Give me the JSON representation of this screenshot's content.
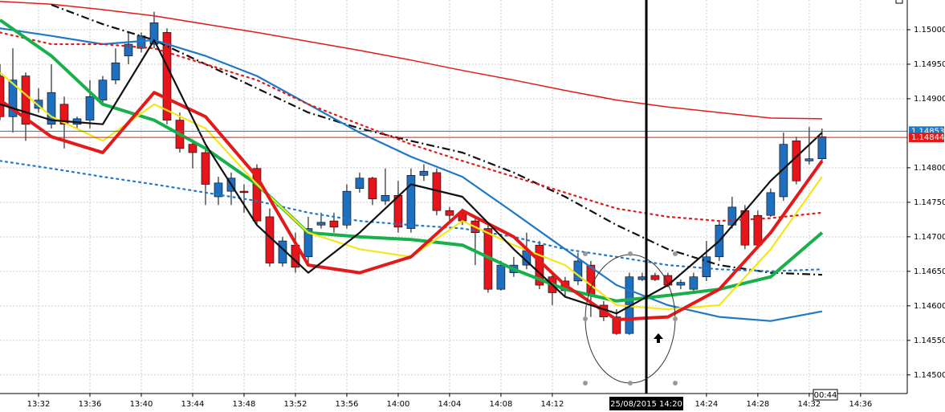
{
  "chart_data": {
    "type": "candlestick",
    "x": [
      "13:29",
      "13:30",
      "13:31",
      "13:32",
      "13:33",
      "13:34",
      "13:35",
      "13:36",
      "13:37",
      "13:38",
      "13:39",
      "13:40",
      "13:41",
      "13:42",
      "13:43",
      "13:44",
      "13:45",
      "13:46",
      "13:47",
      "13:48",
      "13:49",
      "13:50",
      "13:51",
      "13:52",
      "13:53",
      "13:54",
      "13:55",
      "13:56",
      "13:57",
      "13:58",
      "13:59",
      "14:00",
      "14:01",
      "14:02",
      "14:03",
      "14:04",
      "14:05",
      "14:06",
      "14:07",
      "14:08",
      "14:09",
      "14:10",
      "14:11",
      "14:12",
      "14:13",
      "14:14",
      "14:15",
      "14:16",
      "14:17",
      "14:18",
      "14:19",
      "14:20",
      "14:21",
      "14:22",
      "14:23",
      "14:24",
      "14:25",
      "14:26",
      "14:27",
      "14:28",
      "14:29",
      "14:30",
      "14:31",
      "14:32",
      "14:33"
    ],
    "candles": {
      "open": [
        1.14933,
        1.14874,
        1.14933,
        1.14886,
        1.14863,
        1.14892,
        1.14863,
        1.14869,
        1.14898,
        1.14927,
        1.14962,
        1.14973,
        1.14979,
        1.14996,
        1.14869,
        1.14834,
        1.14822,
        1.14758,
        1.14766,
        1.14766,
        1.14799,
        1.14729,
        1.14662,
        1.14688,
        1.14671,
        1.14717,
        1.14723,
        1.14717,
        1.1477,
        1.14785,
        1.14752,
        1.1476,
        1.14712,
        1.14789,
        1.14793,
        1.14738,
        1.14735,
        1.14723,
        1.14712,
        1.14624,
        1.14648,
        1.14659,
        1.14688,
        1.14642,
        1.14636,
        1.14636,
        1.14659,
        1.14601,
        1.14584,
        1.1456,
        1.14638,
        1.14644,
        1.14644,
        1.1463,
        1.14624,
        1.14642,
        1.14671,
        1.14717,
        1.14738,
        1.14731,
        1.14731,
        1.14758,
        1.14839,
        1.1481,
        1.14813
      ],
      "high": [
        1.1495,
        1.14973,
        1.14938,
        1.14915,
        1.1495,
        1.14903,
        1.14874,
        1.14927,
        1.14933,
        1.14973,
        1.14996,
        1.14996,
        1.15026,
        1.15002,
        1.1488,
        1.14839,
        1.14828,
        1.14787,
        1.14793,
        1.14776,
        1.14805,
        1.14741,
        1.147,
        1.14706,
        1.14729,
        1.14735,
        1.14735,
        1.14776,
        1.14793,
        1.14787,
        1.14799,
        1.14781,
        1.14799,
        1.14805,
        1.14799,
        1.14743,
        1.14741,
        1.14729,
        1.14717,
        1.14665,
        1.14671,
        1.14706,
        1.14694,
        1.14648,
        1.14642,
        1.14677,
        1.14665,
        1.14607,
        1.14595,
        1.14648,
        1.14648,
        1.14648,
        1.14648,
        1.14638,
        1.14648,
        1.14694,
        1.14723,
        1.14758,
        1.14746,
        1.14738,
        1.1477,
        1.14851,
        1.14845,
        1.14859,
        1.14857
      ],
      "low": [
        1.14869,
        1.14851,
        1.14839,
        1.1488,
        1.14857,
        1.14828,
        1.14857,
        1.14857,
        1.14892,
        1.14921,
        1.1495,
        1.14967,
        1.14973,
        1.14863,
        1.14822,
        1.14799,
        1.14746,
        1.14746,
        1.14746,
        1.14735,
        1.14717,
        1.14657,
        1.14657,
        1.14648,
        1.14659,
        1.14712,
        1.14706,
        1.14712,
        1.14764,
        1.14746,
        1.14746,
        1.14706,
        1.14706,
        1.14781,
        1.14731,
        1.14723,
        1.14717,
        1.14659,
        1.14619,
        1.14622,
        1.14642,
        1.14653,
        1.14624,
        1.14601,
        1.14613,
        1.1463,
        1.14584,
        1.14578,
        1.14558,
        1.14558,
        1.14636,
        1.14636,
        1.14627,
        1.14624,
        1.14619,
        1.14636,
        1.14665,
        1.14712,
        1.14682,
        1.14682,
        1.14729,
        1.14752,
        1.14776,
        1.14805,
        1.1481
      ],
      "close": [
        1.14874,
        1.14927,
        1.14863,
        1.14898,
        1.14909,
        1.14863,
        1.14871,
        1.14903,
        1.14927,
        1.14952,
        1.14979,
        1.14991,
        1.1501,
        1.14869,
        1.14828,
        1.14822,
        1.14776,
        1.14778,
        1.14785,
        1.14764,
        1.14723,
        1.14662,
        1.14694,
        1.14656,
        1.14712,
        1.14721,
        1.14714,
        1.14766,
        1.14785,
        1.14755,
        1.1476,
        1.14714,
        1.14789,
        1.14795,
        1.14738,
        1.14731,
        1.14723,
        1.14706,
        1.14624,
        1.14659,
        1.14659,
        1.1468,
        1.1463,
        1.14619,
        1.14622,
        1.14665,
        1.14615,
        1.14584,
        1.1456,
        1.14642,
        1.14642,
        1.14638,
        1.1463,
        1.14634,
        1.14642,
        1.14671,
        1.14717,
        1.14743,
        1.14688,
        1.14688,
        1.14764,
        1.14834,
        1.14781,
        1.14813,
        1.14845
      ]
    },
    "up_color": "#1f6fc0",
    "down_color": "#e8141c",
    "series": [
      {
        "color": "#e31a1a",
        "style": "solid",
        "weight": "thin",
        "x": [
          "13:29",
          "13:33",
          "13:37",
          "13:41",
          "13:45",
          "13:49",
          "13:53",
          "13:57",
          "14:01",
          "14:05",
          "14:09",
          "14:13",
          "14:17",
          "14:21",
          "14:25",
          "14:29",
          "14:33"
        ],
        "values": [
          1.15041,
          1.15037,
          1.15029,
          1.1502,
          1.15008,
          1.14996,
          1.14983,
          1.1497,
          1.14956,
          1.14941,
          1.14927,
          1.14912,
          1.14898,
          1.14888,
          1.1488,
          1.14872,
          1.14871
        ]
      },
      {
        "color": "#111111",
        "style": "dashdot",
        "weight": "medium",
        "x": [
          "13:29",
          "13:33",
          "13:37",
          "13:41",
          "13:45",
          "13:49",
          "13:53",
          "13:57",
          "14:01",
          "14:05",
          "14:09",
          "14:13",
          "14:17",
          "14:21",
          "14:25",
          "14:29",
          "14:33"
        ],
        "values": [
          null,
          1.15036,
          1.15008,
          1.14985,
          1.1495,
          1.14915,
          1.1488,
          1.14857,
          1.14839,
          1.14822,
          1.14793,
          1.14758,
          1.14717,
          1.14682,
          1.14659,
          1.14648,
          1.14645
        ]
      },
      {
        "color": "#1f78c8",
        "style": "solid",
        "weight": "medium",
        "x": [
          "13:29",
          "13:33",
          "13:37",
          "13:41",
          "13:45",
          "13:49",
          "13:53",
          "13:57",
          "14:01",
          "14:05",
          "14:09",
          "14:13",
          "14:17",
          "14:21",
          "14:25",
          "14:29",
          "14:33"
        ],
        "values": [
          1.15002,
          1.14991,
          1.14979,
          1.14985,
          1.14962,
          1.14933,
          1.14892,
          1.14851,
          1.14816,
          1.14787,
          1.14735,
          1.14682,
          1.1463,
          1.14601,
          1.14584,
          1.14578,
          1.14592
        ]
      },
      {
        "color": "#e31a1a",
        "style": "dot",
        "weight": "medium",
        "x": [
          "13:29",
          "13:33",
          "13:37",
          "13:41",
          "13:45",
          "13:49",
          "13:53",
          "13:57",
          "14:01",
          "14:05",
          "14:09",
          "14:13",
          "14:17",
          "14:21",
          "14:25",
          "14:29",
          "14:33"
        ],
        "values": [
          1.14996,
          1.14979,
          1.14979,
          1.14973,
          1.1495,
          1.14927,
          1.14892,
          1.14863,
          1.14834,
          1.1481,
          1.14787,
          1.14764,
          1.14741,
          1.14729,
          1.14723,
          1.14727,
          1.14735
        ]
      },
      {
        "color": "#1f78c8",
        "style": "dot",
        "weight": "medium",
        "x": [
          "13:29",
          "13:33",
          "13:37",
          "13:41",
          "13:45",
          "13:49",
          "13:53",
          "13:57",
          "14:01",
          "14:05",
          "14:09",
          "14:13",
          "14:17",
          "14:21",
          "14:25",
          "14:29",
          "14:33"
        ],
        "values": [
          1.1481,
          1.14799,
          1.14787,
          1.14776,
          1.14764,
          1.14752,
          1.14735,
          1.14723,
          1.14717,
          1.14712,
          1.147,
          1.14682,
          1.14671,
          1.14659,
          1.14653,
          1.1465,
          1.14653
        ]
      },
      {
        "color": "#18b04a",
        "style": "solid",
        "weight": "thick",
        "x": [
          "13:29",
          "13:33",
          "13:37",
          "13:41",
          "13:45",
          "13:49",
          "13:53",
          "13:57",
          "14:01",
          "14:05",
          "14:09",
          "14:13",
          "14:17",
          "14:21",
          "14:25",
          "14:29",
          "14:33"
        ],
        "values": [
          1.15014,
          1.14962,
          1.14892,
          1.14869,
          1.14828,
          1.14776,
          1.14706,
          1.147,
          1.14696,
          1.14688,
          1.14653,
          1.14624,
          1.14607,
          1.14615,
          1.14624,
          1.14642,
          1.14706
        ]
      },
      {
        "color": "#f5e61a",
        "style": "solid",
        "weight": "medium",
        "x": [
          "13:29",
          "13:33",
          "13:37",
          "13:41",
          "13:45",
          "13:49",
          "13:53",
          "13:57",
          "14:01",
          "14:05",
          "14:09",
          "14:13",
          "14:17",
          "14:21",
          "14:25",
          "14:29",
          "14:33"
        ],
        "values": [
          1.14938,
          1.14874,
          1.14839,
          1.14892,
          1.14857,
          1.14776,
          1.14706,
          1.14682,
          1.14671,
          1.14723,
          1.14688,
          1.14659,
          1.14601,
          1.14595,
          1.14601,
          1.14682,
          1.14787
        ]
      },
      {
        "color": "#e31a1a",
        "style": "solid",
        "weight": "thick",
        "x": [
          "13:29",
          "13:33",
          "13:37",
          "13:41",
          "13:45",
          "13:49",
          "13:53",
          "13:57",
          "14:01",
          "14:05",
          "14:09",
          "14:13",
          "14:17",
          "14:21",
          "14:25",
          "14:29",
          "14:33"
        ],
        "values": [
          1.14898,
          1.14845,
          1.14822,
          1.14909,
          1.14874,
          1.14787,
          1.14659,
          1.14648,
          1.14671,
          1.14738,
          1.147,
          1.1463,
          1.1458,
          1.14584,
          1.14624,
          1.14706,
          1.1481
        ]
      },
      {
        "color": "#111111",
        "style": "solid",
        "weight": "medium",
        "x": [
          "13:29",
          "13:33",
          "13:37",
          "13:41",
          "13:45",
          "13:49",
          "13:53",
          "13:57",
          "14:01",
          "14:05",
          "14:09",
          "14:13",
          "14:17",
          "14:21",
          "14:25",
          "14:29",
          "14:33"
        ],
        "values": [
          1.14892,
          1.14869,
          1.14863,
          1.14985,
          1.14834,
          1.14717,
          1.14648,
          1.14706,
          1.14776,
          1.14758,
          1.14682,
          1.14613,
          1.14589,
          1.1463,
          1.14694,
          1.14781,
          1.14851
        ]
      }
    ],
    "xlim": [
      "13:29",
      "14:39:38"
    ],
    "xticks": [
      "13:32",
      "13:36",
      "13:40",
      "13:44",
      "13:48",
      "13:52",
      "13:56",
      "14:00",
      "14:04",
      "14:08",
      "14:12",
      "14:24",
      "14:28",
      "14:32",
      "14:36"
    ],
    "ylim": [
      1.14473,
      1.15043
    ],
    "yticks": [
      {
        "value": 1.145,
        "label": "1.14500"
      },
      {
        "value": 1.1455,
        "label": "1.14550"
      },
      {
        "value": 1.146,
        "label": "1.14600"
      },
      {
        "value": 1.1465,
        "label": "1.14650"
      },
      {
        "value": 1.147,
        "label": "1.14700"
      },
      {
        "value": 1.1475,
        "label": "1.14750"
      },
      {
        "value": 1.148,
        "label": "1.14800"
      },
      {
        "value": 1.149,
        "label": "1.14900"
      },
      {
        "value": 1.1495,
        "label": "1.14950"
      },
      {
        "value": 1.15,
        "label": "1.15000"
      }
    ],
    "grid": true,
    "price_lines": [
      {
        "value": 1.14853,
        "label": "1.14853",
        "color": "#1f78c8"
      },
      {
        "value": 1.14844,
        "label": "1.14844",
        "color": "#e31a1a"
      }
    ],
    "cursor_label": "25/08/2015 14:20",
    "countdown": "00:44"
  }
}
